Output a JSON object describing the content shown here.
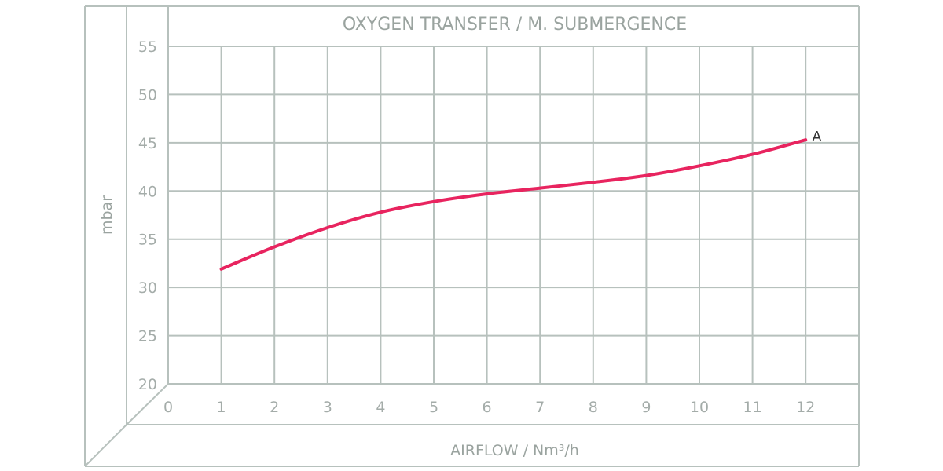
{
  "chart_data": {
    "type": "line",
    "title": "OXYGEN TRANSFER / M. SUBMERGENCE",
    "xlabel": "AIRFLOW / Nm³/h",
    "ylabel": "mbar",
    "xlim": [
      0,
      13
    ],
    "ylim": [
      20,
      55
    ],
    "x_ticks": [
      0,
      1,
      2,
      3,
      4,
      5,
      6,
      7,
      8,
      9,
      10,
      11,
      12
    ],
    "y_ticks": [
      20,
      25,
      30,
      35,
      40,
      45,
      50,
      55
    ],
    "grid": true,
    "series": [
      {
        "name": "A",
        "color": "#e8245f",
        "x": [
          1,
          2,
          3,
          4,
          5,
          6,
          7,
          8,
          9,
          10,
          11,
          12
        ],
        "values": [
          31.9,
          34.2,
          36.2,
          37.8,
          38.9,
          39.7,
          40.3,
          40.9,
          41.6,
          42.6,
          43.8,
          45.3
        ]
      }
    ]
  },
  "colors": {
    "grid": "#b7c1bd",
    "text": "#9aa39f",
    "curve": "#e8245f"
  }
}
